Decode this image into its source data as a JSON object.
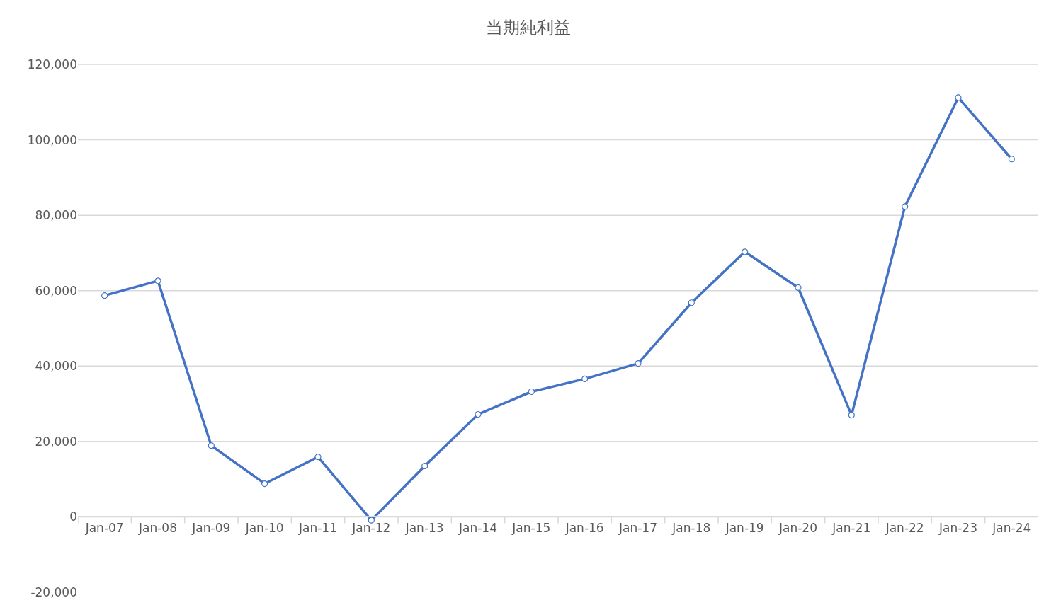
{
  "chart_data": {
    "type": "line",
    "title": "当期純利益",
    "categories": [
      "Jan-07",
      "Jan-08",
      "Jan-09",
      "Jan-10",
      "Jan-11",
      "Jan-12",
      "Jan-13",
      "Jan-14",
      "Jan-15",
      "Jan-16",
      "Jan-17",
      "Jan-18",
      "Jan-19",
      "Jan-20",
      "Jan-21",
      "Jan-22",
      "Jan-23",
      "Jan-24"
    ],
    "series": [
      {
        "color": "#4472c4",
        "values": [
          58700,
          62600,
          18900,
          8800,
          15900,
          -900,
          13500,
          27200,
          33200,
          36600,
          40700,
          56800,
          70300,
          60800,
          27000,
          82300,
          111200,
          94900
        ]
      }
    ],
    "ylim": [
      -20000,
      120000
    ],
    "yticks": [
      {
        "value": -20000,
        "label": "-20,000"
      },
      0,
      {
        "value": 20000,
        "label": "20,000"
      },
      {
        "value": 40000,
        "label": "40,000"
      },
      {
        "value": 60000,
        "label": "60,000"
      },
      {
        "value": 80000,
        "label": "80,000"
      },
      {
        "value": 100000,
        "label": "100,000"
      },
      {
        "value": 120000,
        "label": "120,000"
      }
    ],
    "grid": "y",
    "marker": "circle",
    "line_style": "solid"
  }
}
